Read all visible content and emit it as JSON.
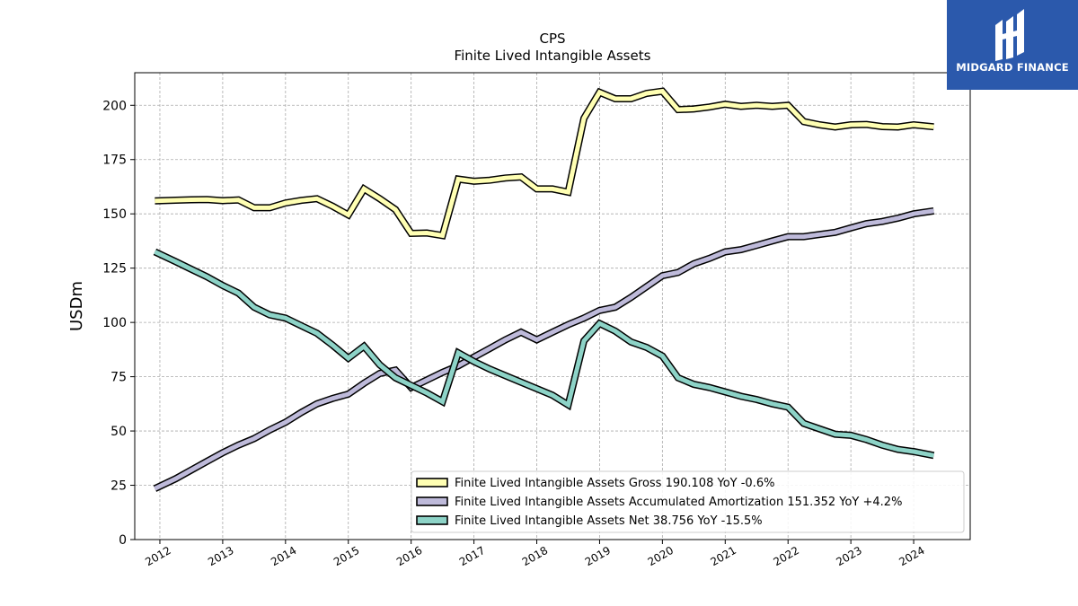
{
  "brand": {
    "name": "MIDGARD FINANCE",
    "logo_icon": "midgard-logo-icon",
    "background_color": "#2b59ac"
  },
  "chart_data": {
    "type": "line",
    "title": "CPS",
    "subtitle": "Finite Lived Intangible Assets",
    "xlabel": "",
    "ylabel": "USDm",
    "xlim": [
      2011.6,
      2024.9
    ],
    "ylim": [
      0,
      215
    ],
    "x_ticks": [
      2012,
      2013,
      2014,
      2015,
      2016,
      2017,
      2018,
      2019,
      2020,
      2021,
      2022,
      2023,
      2024
    ],
    "y_ticks": [
      0,
      25,
      50,
      75,
      100,
      125,
      150,
      175,
      200
    ],
    "grid": true,
    "legend_position": "lower-right",
    "series": [
      {
        "name": "Finite Lived Intangible Assets Gross",
        "legend_label": "Finite Lived Intangible Assets Gross  190.108 YoY -0.6%",
        "color": "#ffffb3",
        "x": [
          2011.92,
          2012.25,
          2012.5,
          2012.75,
          2013.0,
          2013.25,
          2013.5,
          2013.75,
          2014.0,
          2014.25,
          2014.5,
          2014.75,
          2015.0,
          2015.25,
          2015.5,
          2015.75,
          2016.0,
          2016.25,
          2016.5,
          2016.75,
          2017.0,
          2017.25,
          2017.5,
          2017.75,
          2018.0,
          2018.25,
          2018.5,
          2018.75,
          2019.0,
          2019.25,
          2019.5,
          2019.75,
          2020.0,
          2020.25,
          2020.5,
          2020.75,
          2021.0,
          2021.25,
          2021.5,
          2021.75,
          2022.0,
          2022.25,
          2022.5,
          2022.75,
          2023.0,
          2023.25,
          2023.5,
          2023.75,
          2024.0,
          2024.32
        ],
        "values": [
          156,
          156.3,
          156.5,
          156.6,
          156.1,
          156.4,
          152.8,
          152.8,
          155,
          156.2,
          157,
          153.5,
          149.5,
          161.5,
          157,
          152,
          141,
          141.2,
          140,
          166,
          165,
          165.5,
          166.5,
          167,
          161.5,
          161.5,
          160,
          194,
          206,
          203,
          203,
          205.5,
          206.5,
          198,
          198.3,
          199.2,
          200.5,
          199.5,
          200,
          199.5,
          200,
          192.5,
          191,
          190,
          191,
          191.2,
          190.2,
          190,
          191,
          190.108
        ]
      },
      {
        "name": "Finite Lived Intangible Assets Accumulated Amortization",
        "legend_label": "Finite Lived Intangible Assets Accumulated Amortization  151.352 YoY +4.2%",
        "color": "#bebada",
        "x": [
          2011.92,
          2012.25,
          2012.5,
          2012.75,
          2013.0,
          2013.25,
          2013.5,
          2013.75,
          2014.0,
          2014.25,
          2014.5,
          2014.75,
          2015.0,
          2015.25,
          2015.5,
          2015.75,
          2016.0,
          2016.25,
          2016.5,
          2016.75,
          2017.0,
          2017.25,
          2017.5,
          2017.75,
          2018.0,
          2018.25,
          2018.5,
          2018.75,
          2019.0,
          2019.25,
          2019.5,
          2019.75,
          2020.0,
          2020.25,
          2020.5,
          2020.75,
          2021.0,
          2021.25,
          2021.5,
          2021.75,
          2022.0,
          2022.25,
          2022.5,
          2022.75,
          2023.0,
          2023.25,
          2023.5,
          2023.75,
          2024.0,
          2024.32
        ],
        "values": [
          23.5,
          28,
          32,
          36,
          40,
          43.5,
          46.5,
          50.5,
          54,
          58.5,
          62.5,
          65,
          67,
          72,
          76.5,
          78,
          70,
          73.5,
          77,
          80,
          84,
          88,
          92,
          95.5,
          92,
          95.5,
          99,
          102,
          105.5,
          107,
          111.5,
          116.5,
          121.5,
          123,
          127,
          129.5,
          132.5,
          133.5,
          135.5,
          137.5,
          139.5,
          139.5,
          140.5,
          141.5,
          143.5,
          145.5,
          146.5,
          148,
          150,
          151.352
        ]
      },
      {
        "name": "Finite Lived Intangible Assets Net",
        "legend_label": "Finite Lived Intangible Assets Net  38.756 YoY -15.5%",
        "color": "#8dd3c7",
        "x": [
          2011.92,
          2012.25,
          2012.5,
          2012.75,
          2013.0,
          2013.25,
          2013.5,
          2013.75,
          2014.0,
          2014.25,
          2014.5,
          2014.75,
          2015.0,
          2015.25,
          2015.5,
          2015.75,
          2016.0,
          2016.25,
          2016.5,
          2016.75,
          2017.0,
          2017.25,
          2017.5,
          2017.75,
          2018.0,
          2018.25,
          2018.5,
          2018.75,
          2019.0,
          2019.25,
          2019.5,
          2019.75,
          2020.0,
          2020.25,
          2020.5,
          2020.75,
          2021.0,
          2021.25,
          2021.5,
          2021.75,
          2022.0,
          2022.25,
          2022.5,
          2022.75,
          2023.0,
          2023.25,
          2023.5,
          2023.75,
          2024.0,
          2024.32
        ],
        "values": [
          132.5,
          128,
          124.5,
          121,
          117,
          113.5,
          107,
          103.5,
          102,
          98.5,
          95,
          89.5,
          83.5,
          89,
          80.5,
          74.5,
          71,
          67.5,
          63.5,
          86,
          82,
          78.5,
          75.5,
          72.5,
          69.5,
          66.5,
          62,
          91.5,
          99.5,
          96,
          91,
          88.5,
          84.5,
          74.5,
          71.5,
          70,
          68,
          66,
          64.5,
          62.5,
          61,
          53.5,
          51,
          48.5,
          48,
          46,
          43.5,
          41.5,
          40.5,
          38.756
        ]
      }
    ]
  }
}
